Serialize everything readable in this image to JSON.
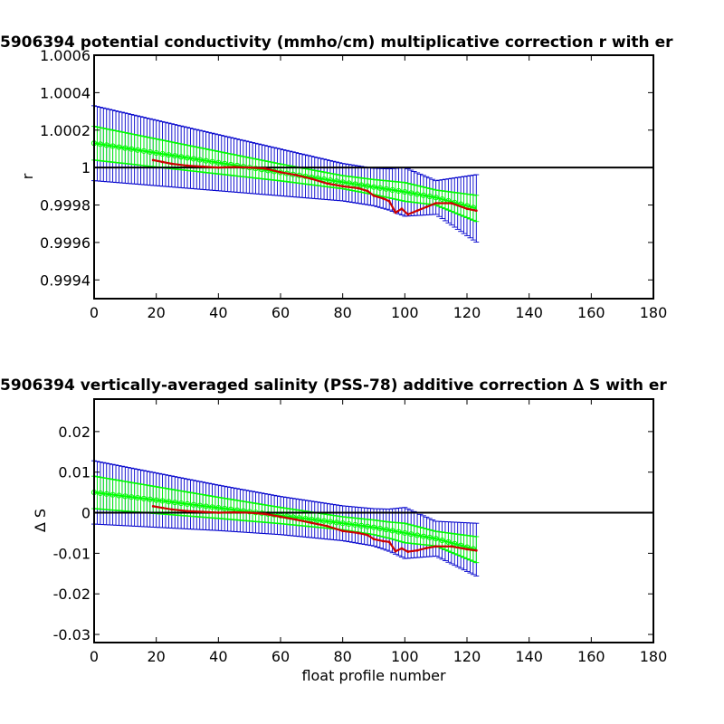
{
  "chart_data": [
    {
      "type": "line",
      "title": "5906394 potential conductivity (mmho/cm) multiplicative correction r with er",
      "xlabel": "",
      "ylabel": "r",
      "xlim": [
        0,
        180
      ],
      "ylim": [
        0.9993,
        1.0006
      ],
      "xticks": [
        "0",
        "20",
        "40",
        "60",
        "80",
        "100",
        "120",
        "140",
        "160",
        "180"
      ],
      "yticks": [
        "0.9994",
        "0.9996",
        "0.9998",
        "1",
        "1.0002",
        "1.0004",
        "1.0006"
      ],
      "reference_line": 1.0,
      "grid": false,
      "colors": {
        "blue": "#0000cc",
        "green": "#00ff00",
        "red": "#cc0000",
        "black": "#000000"
      },
      "series": [
        {
          "role": "fit_with_error",
          "x": [
            0,
            20,
            40,
            60,
            80,
            90,
            95,
            100,
            110,
            123
          ],
          "y": [
            1.00013,
            1.000078,
            1.000026,
            0.999974,
            0.999922,
            0.999896,
            0.999883,
            0.99987,
            0.99984,
            0.999782
          ],
          "err": [
            0.0002,
            0.000175,
            0.00015,
            0.000125,
            0.0001,
            0.0001,
            0.00011,
            0.00013,
            9e-05,
            0.00018
          ]
        },
        {
          "role": "fit_band",
          "x": [
            0,
            20,
            40,
            60,
            80,
            90,
            95,
            100,
            110,
            123
          ],
          "y": [
            1.00013,
            1.000078,
            1.000026,
            0.999974,
            0.999922,
            0.999896,
            0.999883,
            0.99987,
            0.99984,
            0.999782
          ],
          "err": [
            9e-05,
            7.5e-05,
            6e-05,
            4.5e-05,
            3.5e-05,
            4e-05,
            4.5e-05,
            5e-05,
            4e-05,
            7e-05
          ]
        },
        {
          "role": "profile_correction",
          "x": [
            19,
            22,
            25,
            30,
            35,
            40,
            45,
            50,
            55,
            60,
            65,
            70,
            75,
            80,
            85,
            88,
            90,
            93,
            95,
            97,
            99,
            101,
            104,
            107,
            110,
            115,
            120,
            123
          ],
          "y": [
            1.00004,
            1.00003,
            1.00002,
            1.00001,
            1.000005,
            1.0,
            1.000003,
            1.0,
            0.999995,
            0.999975,
            0.99996,
            0.99994,
            0.999915,
            0.9999,
            0.99989,
            0.999875,
            0.99985,
            0.999835,
            0.99982,
            0.99976,
            0.99978,
            0.99975,
            0.99977,
            0.99979,
            0.99981,
            0.99981,
            0.99978,
            0.99977
          ]
        }
      ]
    },
    {
      "type": "line",
      "title": "5906394 vertically-averaged salinity (PSS-78) additive correction ∆ S with er",
      "xlabel": "float profile number",
      "ylabel": "∆ S",
      "xlim": [
        0,
        180
      ],
      "ylim": [
        -0.032,
        0.028
      ],
      "xticks": [
        "0",
        "20",
        "40",
        "60",
        "80",
        "100",
        "120",
        "140",
        "160",
        "180"
      ],
      "yticks": [
        "-0.03",
        "-0.02",
        "-0.01",
        "0",
        "0.01",
        "0.02"
      ],
      "reference_line": 0,
      "grid": false,
      "colors": {
        "blue": "#0000cc",
        "green": "#00ff00",
        "red": "#cc0000",
        "black": "#000000"
      },
      "series": [
        {
          "role": "fit_with_error",
          "x": [
            0,
            20,
            40,
            60,
            80,
            90,
            95,
            100,
            110,
            123
          ],
          "y": [
            0.005,
            0.0031,
            0.0012,
            -0.0007,
            -0.0026,
            -0.0036,
            -0.0043,
            -0.005,
            -0.0064,
            -0.0091
          ],
          "err": [
            0.0078,
            0.0067,
            0.0056,
            0.0047,
            0.0043,
            0.0046,
            0.0052,
            0.0063,
            0.0043,
            0.0065
          ]
        },
        {
          "role": "fit_band",
          "x": [
            0,
            20,
            40,
            60,
            80,
            90,
            95,
            100,
            110,
            123
          ],
          "y": [
            0.005,
            0.0031,
            0.0012,
            -0.0007,
            -0.0026,
            -0.0036,
            -0.0043,
            -0.005,
            -0.0064,
            -0.0091
          ],
          "err": [
            0.004,
            0.0033,
            0.0026,
            0.002,
            0.0016,
            0.0018,
            0.002,
            0.0024,
            0.0018,
            0.0032
          ]
        },
        {
          "role": "profile_correction",
          "x": [
            19,
            22,
            25,
            30,
            35,
            40,
            45,
            50,
            55,
            60,
            65,
            70,
            75,
            80,
            85,
            88,
            90,
            93,
            95,
            97,
            99,
            101,
            104,
            107,
            110,
            115,
            120,
            123
          ],
          "y": [
            0.0016,
            0.0012,
            0.0008,
            0.0004,
            0.0002,
            0.0,
            0.0001,
            0.0,
            -0.0003,
            -0.001,
            -0.0017,
            -0.0025,
            -0.0033,
            -0.0045,
            -0.005,
            -0.0055,
            -0.0065,
            -0.007,
            -0.0072,
            -0.0095,
            -0.0088,
            -0.0096,
            -0.0093,
            -0.0087,
            -0.0083,
            -0.0083,
            -0.009,
            -0.0093
          ]
        }
      ]
    }
  ]
}
